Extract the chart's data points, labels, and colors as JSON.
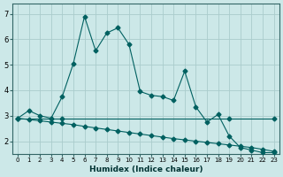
{
  "xlabel": "Humidex (Indice chaleur)",
  "bg_color": "#cce8e8",
  "grid_color": "#aacccc",
  "line_color": "#006060",
  "xlim": [
    -0.5,
    23.5
  ],
  "ylim": [
    1.5,
    7.4
  ],
  "yticks": [
    2,
    3,
    4,
    5,
    6,
    7
  ],
  "xticks": [
    0,
    1,
    2,
    3,
    4,
    5,
    6,
    7,
    8,
    9,
    10,
    11,
    12,
    13,
    14,
    15,
    16,
    17,
    18,
    19,
    20,
    21,
    22,
    23
  ],
  "line1_x": [
    0,
    1,
    2,
    3,
    4,
    5,
    6,
    7,
    8,
    9,
    10,
    11,
    12,
    13,
    14,
    15,
    16,
    17,
    18,
    19,
    20,
    21,
    22,
    23
  ],
  "line1_y": [
    2.9,
    3.2,
    3.0,
    2.9,
    3.75,
    5.05,
    6.9,
    5.55,
    6.25,
    6.45,
    5.8,
    3.95,
    3.8,
    3.75,
    3.6,
    4.75,
    3.35,
    2.75,
    3.05,
    2.2,
    1.75,
    1.65,
    1.55,
    1.55
  ],
  "line2_x": [
    0,
    3,
    4,
    19,
    23
  ],
  "line2_y": [
    2.9,
    2.9,
    2.9,
    2.9,
    2.9
  ],
  "line3_x": [
    0,
    1,
    2,
    3,
    4,
    5,
    6,
    7,
    8,
    9,
    10,
    11,
    12,
    13,
    14,
    15,
    16,
    17,
    18,
    19,
    20,
    21,
    22,
    23
  ],
  "line3_y": [
    2.9,
    2.85,
    2.8,
    2.75,
    2.7,
    2.65,
    2.58,
    2.52,
    2.46,
    2.4,
    2.34,
    2.28,
    2.22,
    2.16,
    2.1,
    2.05,
    2.0,
    1.95,
    1.9,
    1.85,
    1.8,
    1.75,
    1.68,
    1.6
  ]
}
